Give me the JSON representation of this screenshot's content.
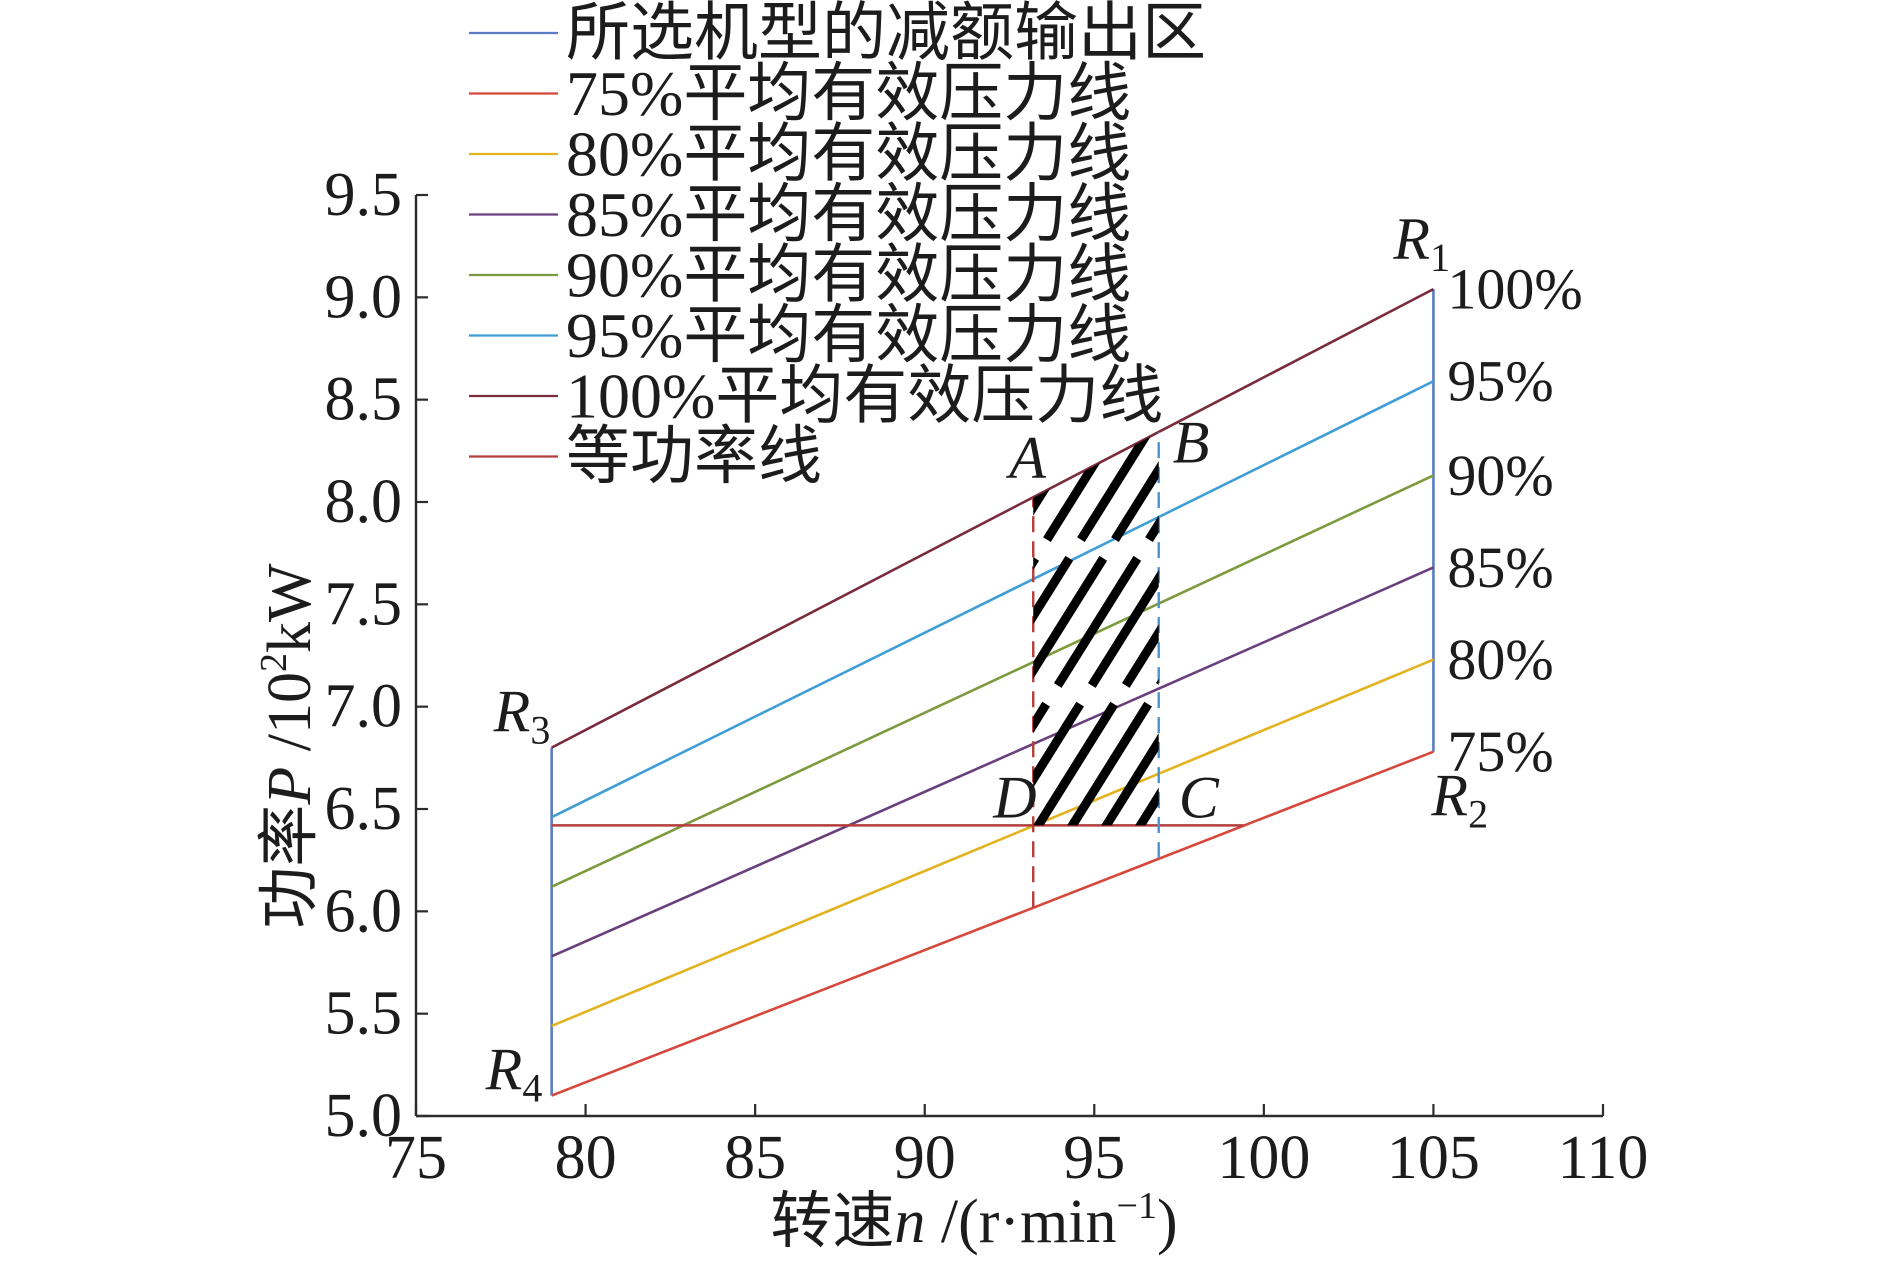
{
  "chart_data": {
    "type": "line",
    "xlabel": {
      "name": "转速",
      "symbol": "n",
      "unit": " /(r·min",
      "unit_sup": "−1",
      "unit_end": ")"
    },
    "ylabel": {
      "name": "功率",
      "symbol": "P",
      "unit": " /10",
      "unit_sup": "2",
      "unit_end": "kW"
    },
    "xlim": [
      75,
      110
    ],
    "ylim": [
      5.0,
      9.5
    ],
    "xticks": [
      "75",
      "80",
      "85",
      "90",
      "95",
      "100",
      "105",
      "110"
    ],
    "yticks": [
      "5.0",
      "5.5",
      "6.0",
      "6.5",
      "7.0",
      "7.5",
      "8.0",
      "8.5",
      "9.0",
      "9.5"
    ],
    "grid": false,
    "legend_position": "top-left",
    "axis_color": "#2b2b2b",
    "series": [
      {
        "name": "所选机型的减额输出区",
        "type": "boundary",
        "color": "#5a7cc4",
        "segments": [
          {
            "x": [
              79,
              79
            ],
            "y": [
              5.1,
              6.8
            ]
          },
          {
            "x": [
              105,
              105
            ],
            "y": [
              6.78,
              9.04
            ]
          }
        ]
      },
      {
        "name": "75%平均有效压力线",
        "type": "line",
        "color": "#d6483c",
        "x": [
          79,
          105
        ],
        "y": [
          5.1,
          6.78
        ],
        "end_label": "75%"
      },
      {
        "name": "80%平均有效压力线",
        "type": "line",
        "color": "#e3b21f",
        "x": [
          79,
          105
        ],
        "y": [
          5.44,
          7.23
        ],
        "end_label": "80%"
      },
      {
        "name": "85%平均有效压力线",
        "type": "line",
        "color": "#6a3f7d",
        "x": [
          79,
          105
        ],
        "y": [
          5.78,
          7.68
        ],
        "end_label": "85%"
      },
      {
        "name": "90%平均有效压力线",
        "type": "line",
        "color": "#7d9a3e",
        "x": [
          79,
          105
        ],
        "y": [
          6.12,
          8.13
        ],
        "end_label": "90%"
      },
      {
        "name": "95%平均有效压力线",
        "type": "line",
        "color": "#3f9ed6",
        "x": [
          79,
          105
        ],
        "y": [
          6.46,
          8.59
        ],
        "end_label": "95%"
      },
      {
        "name": "100%平均有效压力线",
        "type": "line",
        "color": "#7a2b3c",
        "x": [
          79,
          105
        ],
        "y": [
          6.8,
          9.04
        ],
        "end_label": "100%"
      },
      {
        "name": "等功率线",
        "type": "line",
        "color": "#b33e3b",
        "x": [
          79,
          99.4
        ],
        "y": [
          6.42,
          6.42
        ]
      }
    ],
    "reference_lines": [
      {
        "x": [
          93.2,
          93.2
        ],
        "y": [
          6.02,
          8.02
        ],
        "color": "#b33e3b",
        "style": "dashed"
      },
      {
        "x": [
          96.9,
          96.9
        ],
        "y": [
          6.26,
          8.34
        ],
        "color": "#4a93cf",
        "style": "dashed"
      }
    ],
    "operating_area": {
      "x": [
        93.2,
        96.9
      ],
      "y_low": 6.42,
      "y_high": [
        8.02,
        8.34
      ],
      "fill": "hatched",
      "color": "#000000"
    },
    "points": [
      {
        "label": "A",
        "x": 93.2,
        "y": 8.02
      },
      {
        "label": "B",
        "x": 96.9,
        "y": 8.34
      },
      {
        "label": "C",
        "x": 96.9,
        "y": 6.42
      },
      {
        "label": "D",
        "x": 93.2,
        "y": 6.42
      },
      {
        "label": "R",
        "sub": "1",
        "x": 105,
        "y": 9.04
      },
      {
        "label": "R",
        "sub": "2",
        "x": 105,
        "y": 6.78
      },
      {
        "label": "R",
        "sub": "3",
        "x": 79,
        "y": 6.8
      },
      {
        "label": "R",
        "sub": "4",
        "x": 79,
        "y": 5.1
      }
    ]
  }
}
